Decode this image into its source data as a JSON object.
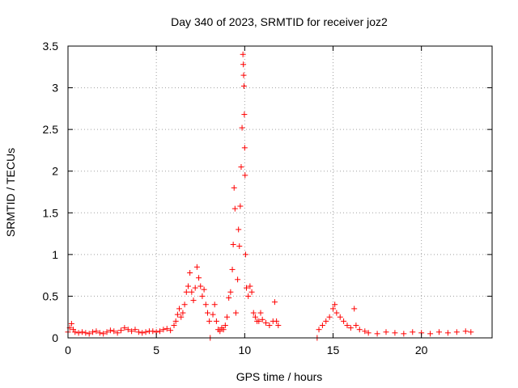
{
  "chart_data": {
    "type": "scatter",
    "title": "Day 340 of 2023, SRMTID for receiver joz2",
    "xlabel": "GPS time / hours",
    "ylabel": "SRMTID / TECUs",
    "xlim": [
      0,
      24
    ],
    "ylim": [
      0,
      3.5
    ],
    "xticks": [
      0,
      5,
      10,
      15,
      20
    ],
    "xtick_labels": [
      "0",
      "5",
      "10",
      "15",
      "20"
    ],
    "yticks": [
      0,
      0.5,
      1,
      1.5,
      2,
      2.5,
      3,
      3.5
    ],
    "ytick_labels": [
      "0",
      "0.5",
      "1",
      "1.5",
      "2",
      "2.5",
      "3",
      "3.5"
    ],
    "grid": true,
    "marker": "+",
    "color": "#ff0000",
    "series": [
      {
        "name": "SRMTID",
        "points": [
          [
            0.0,
            0.07
          ],
          [
            0.1,
            0.12
          ],
          [
            0.2,
            0.17
          ],
          [
            0.3,
            0.1
          ],
          [
            0.4,
            0.07
          ],
          [
            0.6,
            0.06
          ],
          [
            0.8,
            0.07
          ],
          [
            1.0,
            0.06
          ],
          [
            1.2,
            0.05
          ],
          [
            1.4,
            0.07
          ],
          [
            1.6,
            0.08
          ],
          [
            1.8,
            0.06
          ],
          [
            2.0,
            0.05
          ],
          [
            2.2,
            0.07
          ],
          [
            2.4,
            0.09
          ],
          [
            2.6,
            0.08
          ],
          [
            2.8,
            0.06
          ],
          [
            3.0,
            0.09
          ],
          [
            3.2,
            0.12
          ],
          [
            3.4,
            0.1
          ],
          [
            3.6,
            0.08
          ],
          [
            3.8,
            0.1
          ],
          [
            4.0,
            0.07
          ],
          [
            4.2,
            0.06
          ],
          [
            4.4,
            0.07
          ],
          [
            4.6,
            0.08
          ],
          [
            4.8,
            0.08
          ],
          [
            5.0,
            0.07
          ],
          [
            5.2,
            0.08
          ],
          [
            5.4,
            0.1
          ],
          [
            5.6,
            0.11
          ],
          [
            5.8,
            0.09
          ],
          [
            6.0,
            0.15
          ],
          [
            6.1,
            0.2
          ],
          [
            6.2,
            0.28
          ],
          [
            6.3,
            0.35
          ],
          [
            6.4,
            0.25
          ],
          [
            6.5,
            0.3
          ],
          [
            6.6,
            0.4
          ],
          [
            6.7,
            0.55
          ],
          [
            6.8,
            0.62
          ],
          [
            6.9,
            0.78
          ],
          [
            7.0,
            0.55
          ],
          [
            7.1,
            0.45
          ],
          [
            7.2,
            0.6
          ],
          [
            7.3,
            0.85
          ],
          [
            7.4,
            0.72
          ],
          [
            7.5,
            0.62
          ],
          [
            7.6,
            0.5
          ],
          [
            7.7,
            0.58
          ],
          [
            7.8,
            0.4
          ],
          [
            7.9,
            0.3
          ],
          [
            8.0,
            0.2
          ],
          [
            8.05,
            0.0
          ],
          [
            8.2,
            0.28
          ],
          [
            8.3,
            0.4
          ],
          [
            8.4,
            0.2
          ],
          [
            8.5,
            0.1
          ],
          [
            8.6,
            0.08
          ],
          [
            8.7,
            0.12
          ],
          [
            8.8,
            0.1
          ],
          [
            8.9,
            0.15
          ],
          [
            9.0,
            0.25
          ],
          [
            9.1,
            0.48
          ],
          [
            9.2,
            0.55
          ],
          [
            9.3,
            0.82
          ],
          [
            9.35,
            1.12
          ],
          [
            9.4,
            1.8
          ],
          [
            9.45,
            1.55
          ],
          [
            9.5,
            0.3
          ],
          [
            9.6,
            0.7
          ],
          [
            9.65,
            1.3
          ],
          [
            9.7,
            1.1
          ],
          [
            9.75,
            1.58
          ],
          [
            9.8,
            2.05
          ],
          [
            9.85,
            2.52
          ],
          [
            9.9,
            3.4
          ],
          [
            9.92,
            3.28
          ],
          [
            9.94,
            3.15
          ],
          [
            9.96,
            3.02
          ],
          [
            9.98,
            2.68
          ],
          [
            10.0,
            2.28
          ],
          [
            10.02,
            1.95
          ],
          [
            10.05,
            1.0
          ],
          [
            10.1,
            0.6
          ],
          [
            10.2,
            0.5
          ],
          [
            10.3,
            0.62
          ],
          [
            10.4,
            0.55
          ],
          [
            10.5,
            0.3
          ],
          [
            10.6,
            0.25
          ],
          [
            10.7,
            0.2
          ],
          [
            10.8,
            0.2
          ],
          [
            10.9,
            0.3
          ],
          [
            11.0,
            0.22
          ],
          [
            11.2,
            0.18
          ],
          [
            11.4,
            0.15
          ],
          [
            11.6,
            0.2
          ],
          [
            11.7,
            0.43
          ],
          [
            11.8,
            0.2
          ],
          [
            11.9,
            0.15
          ],
          [
            14.1,
            0.0
          ],
          [
            14.2,
            0.1
          ],
          [
            14.4,
            0.15
          ],
          [
            14.6,
            0.2
          ],
          [
            14.8,
            0.25
          ],
          [
            15.0,
            0.35
          ],
          [
            15.1,
            0.4
          ],
          [
            15.2,
            0.3
          ],
          [
            15.4,
            0.25
          ],
          [
            15.6,
            0.2
          ],
          [
            15.8,
            0.15
          ],
          [
            16.0,
            0.12
          ],
          [
            16.2,
            0.35
          ],
          [
            16.3,
            0.15
          ],
          [
            16.5,
            0.1
          ],
          [
            16.8,
            0.08
          ],
          [
            17.0,
            0.06
          ],
          [
            17.5,
            0.05
          ],
          [
            18.0,
            0.07
          ],
          [
            18.5,
            0.06
          ],
          [
            19.0,
            0.05
          ],
          [
            19.5,
            0.07
          ],
          [
            20.0,
            0.06
          ],
          [
            20.5,
            0.05
          ],
          [
            21.0,
            0.07
          ],
          [
            21.5,
            0.06
          ],
          [
            22.0,
            0.07
          ],
          [
            22.5,
            0.08
          ],
          [
            22.8,
            0.07
          ]
        ]
      }
    ]
  }
}
